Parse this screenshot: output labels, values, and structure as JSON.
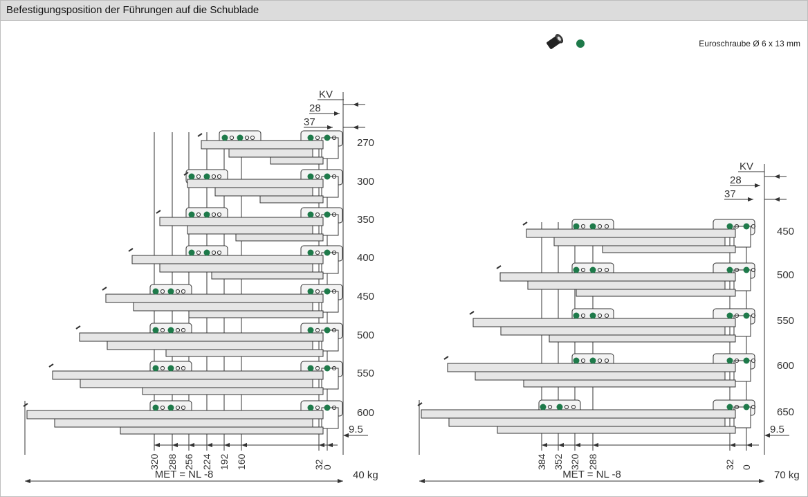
{
  "header": {
    "title": "Befestigungsposition der Führungen auf die Schublade"
  },
  "legend": {
    "icon": "screw-icon",
    "dot_color": "#1e7a4a",
    "text": "Euroschraube Ø 6 x 13 mm"
  },
  "colors": {
    "rail": "#e6e6e6",
    "outline": "#333333",
    "dot": "#1e7a4a",
    "line": "#333333"
  },
  "left_diagram": {
    "kv_label": "KV",
    "offset_labels": [
      "28",
      "37"
    ],
    "lengths": [
      "270",
      "300",
      "350",
      "400",
      "450",
      "500",
      "550",
      "600"
    ],
    "hole_positions": [
      "320",
      "288",
      "256",
      "224",
      "192",
      "160",
      "32",
      "0"
    ],
    "side_dimension": "9.5",
    "met_label": "MET = NL -8",
    "load": "40 kg"
  },
  "right_diagram": {
    "kv_label": "KV",
    "offset_labels": [
      "28",
      "37"
    ],
    "lengths": [
      "450",
      "500",
      "550",
      "600",
      "650"
    ],
    "hole_positions": [
      "384",
      "352",
      "320",
      "288",
      "32",
      "0"
    ],
    "side_dimension": "9.5",
    "met_label": "MET = NL -8",
    "load": "70 kg"
  }
}
